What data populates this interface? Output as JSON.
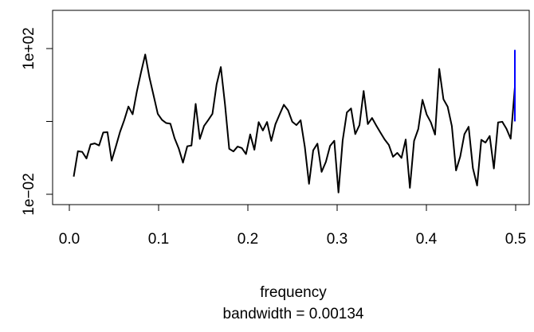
{
  "chart_data": {
    "type": "line",
    "xlabel": "frequency",
    "sublabel": "bandwidth = 0.00134",
    "y_scale": "log",
    "xlim": [
      0.0,
      0.5
    ],
    "ylim": [
      0.01,
      100
    ],
    "x_ticks": [
      0.0,
      0.1,
      0.2,
      0.3,
      0.4,
      0.5
    ],
    "x_tick_labels": [
      "0.0",
      "0.1",
      "0.2",
      "0.3",
      "0.4",
      "0.5"
    ],
    "y_ticks": [
      0.01,
      1,
      100
    ],
    "y_tick_labels": [
      "1e−02",
      "",
      "1e+02"
    ],
    "grid": false,
    "series": [
      {
        "color": "#000000",
        "x": [
          0.0049,
          0.0096,
          0.0144,
          0.0192,
          0.0238,
          0.0285,
          0.0333,
          0.038,
          0.0427,
          0.0474,
          0.0521,
          0.0568,
          0.0615,
          0.0662,
          0.0709,
          0.0756,
          0.0803,
          0.085,
          0.0897,
          0.0944,
          0.0991,
          0.1038,
          0.1085,
          0.1132,
          0.1179,
          0.1226,
          0.1273,
          0.1321,
          0.1368,
          0.1415,
          0.1462,
          0.1509,
          0.1556,
          0.1603,
          0.165,
          0.1697,
          0.1744,
          0.1791,
          0.1838,
          0.1885,
          0.1932,
          0.1979,
          0.2026,
          0.2073,
          0.2121,
          0.2168,
          0.2215,
          0.2262,
          0.2309,
          0.2356,
          0.2403,
          0.245,
          0.2497,
          0.2544,
          0.2591,
          0.2638,
          0.2685,
          0.2732,
          0.2779,
          0.2826,
          0.2874,
          0.2921,
          0.2968,
          0.3015,
          0.3062,
          0.3109,
          0.3156,
          0.3203,
          0.325,
          0.3297,
          0.3344,
          0.3391,
          0.3438,
          0.3485,
          0.3532,
          0.3579,
          0.3626,
          0.3674,
          0.3721,
          0.3768,
          0.3815,
          0.3862,
          0.3909,
          0.3956,
          0.4003,
          0.405,
          0.4097,
          0.4144,
          0.4191,
          0.4238,
          0.4285,
          0.4332,
          0.4379,
          0.4426,
          0.4473,
          0.4521,
          0.4568,
          0.4615,
          0.4662,
          0.4709,
          0.4756,
          0.4803,
          0.485,
          0.4897,
          0.4944,
          0.4991
        ],
        "y": [
          0.0306,
          0.152,
          0.146,
          0.096,
          0.234,
          0.249,
          0.219,
          0.498,
          0.507,
          0.084,
          0.204,
          0.517,
          1.08,
          2.56,
          1.57,
          6.53,
          22.2,
          68.8,
          16.2,
          5.14,
          1.61,
          1.1,
          0.904,
          0.867,
          0.346,
          0.179,
          0.0738,
          0.208,
          0.218,
          3.02,
          0.331,
          0.75,
          1.09,
          1.62,
          10.45,
          31.15,
          2.9,
          0.177,
          0.15,
          0.204,
          0.186,
          0.127,
          0.44,
          0.167,
          0.955,
          0.564,
          0.964,
          0.292,
          0.842,
          1.562,
          2.863,
          2.026,
          0.983,
          0.793,
          1.076,
          0.2,
          0.0194,
          0.161,
          0.245,
          0.0412,
          0.0778,
          0.213,
          0.295,
          0.0112,
          0.301,
          1.763,
          2.267,
          0.449,
          0.789,
          6.863,
          0.845,
          1.244,
          0.774,
          0.493,
          0.32,
          0.227,
          0.107,
          0.137,
          0.0997,
          0.318,
          0.015,
          0.292,
          0.62,
          3.91,
          1.549,
          0.941,
          0.434,
          27.74,
          4.06,
          2.54,
          0.746,
          0.0451,
          0.109,
          0.447,
          0.713,
          0.052,
          0.0174,
          0.312,
          0.262,
          0.398,
          0.0511,
          0.941,
          0.978,
          0.627,
          0.335,
          8.57
        ]
      },
      {
        "color": "#0000ff",
        "x": [
          0.4991,
          0.4991
        ],
        "y": [
          1.0,
          92.0
        ]
      }
    ]
  }
}
